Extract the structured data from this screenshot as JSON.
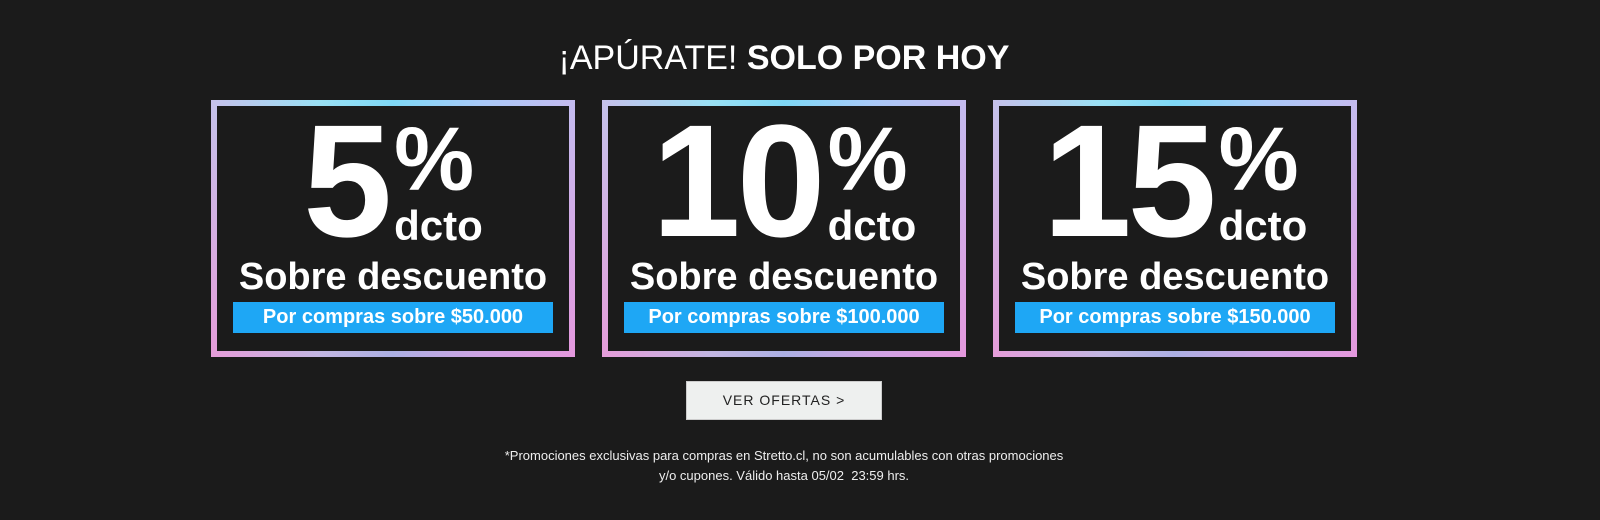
{
  "header": {
    "title_light": "¡APÚRATE!",
    "title_bold": "SOLO POR HOY"
  },
  "offers": [
    {
      "value": "5",
      "percent": "%",
      "unit": "dcto",
      "headline": "Sobre descuento",
      "condition": "Por compras sobre $50.000"
    },
    {
      "value": "10",
      "percent": "%",
      "unit": "dcto",
      "headline": "Sobre descuento",
      "condition": "Por compras sobre $100.000"
    },
    {
      "value": "15",
      "percent": "%",
      "unit": "dcto",
      "headline": "Sobre descuento",
      "condition": "Por compras sobre $150.000"
    }
  ],
  "cta": {
    "label": "VER OFERTAS >"
  },
  "disclaimer": {
    "line1": "*Promociones exclusivas para compras en Stretto.cl, no son acumulables con otras promociones",
    "line2": "y/o cupones. Válido hasta 05/02  23:59 hrs."
  },
  "colors": {
    "background": "#1b1b1b",
    "accent": "#1ea7f5",
    "button": "#eef0ef"
  }
}
